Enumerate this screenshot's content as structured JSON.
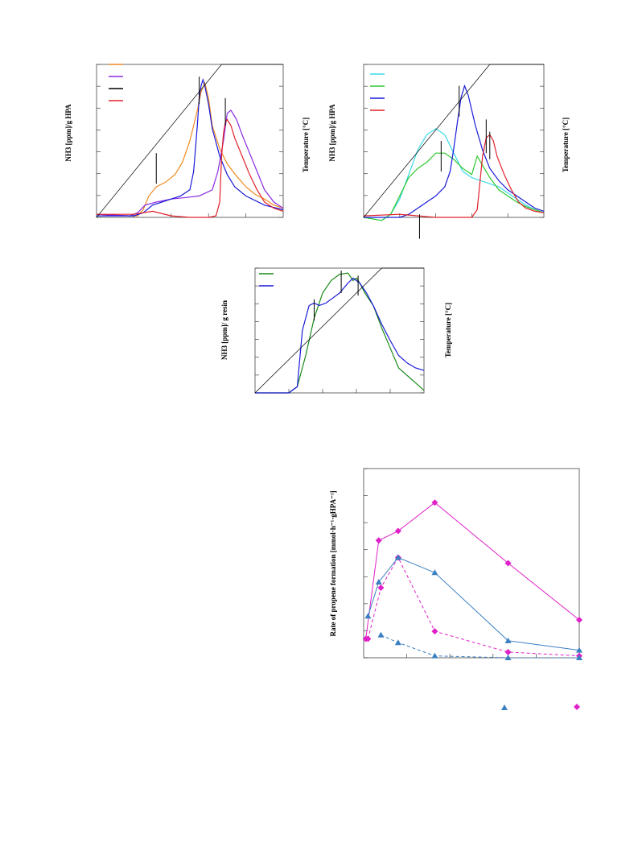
{
  "chart_data": [
    {
      "type": "line",
      "panel": "top-left",
      "ylabel_left": "NH3 [ppm]/g HPA",
      "ylabel_right": "Temperature [°C]",
      "legend_placement": "top-left",
      "legend_colors": [
        "#f08a20",
        "#8a2be2",
        "#000000",
        "#e0202a"
      ],
      "x_range": [
        0,
        100
      ],
      "y_range": [
        0,
        100
      ],
      "series": [
        {
          "color": "#f08a20",
          "x": [
            0,
            18,
            22,
            25,
            28,
            32,
            37,
            42,
            46,
            50,
            54,
            56,
            58,
            60,
            62,
            66,
            70,
            75,
            80,
            85,
            90,
            95,
            100
          ],
          "y": [
            2,
            1,
            1,
            5,
            14,
            20,
            23,
            28,
            36,
            50,
            70,
            82,
            88,
            78,
            60,
            45,
            35,
            27,
            20,
            15,
            12,
            8,
            6
          ]
        },
        {
          "color": "#8a2be2",
          "x": [
            0,
            18,
            22,
            26,
            32,
            40,
            48,
            55,
            62,
            65,
            68,
            70,
            72,
            75,
            78,
            82,
            86,
            90,
            95,
            100
          ],
          "y": [
            2,
            1,
            3,
            8,
            10,
            12,
            13,
            14,
            18,
            30,
            50,
            68,
            70,
            64,
            54,
            42,
            30,
            18,
            10,
            6
          ]
        },
        {
          "color": "#1a1ad8",
          "x": [
            0,
            20,
            25,
            30,
            35,
            40,
            45,
            50,
            52,
            54,
            55,
            56,
            57,
            58,
            60,
            62,
            66,
            70,
            74,
            80,
            90,
            100
          ],
          "y": [
            1,
            1,
            3,
            8,
            10,
            12,
            14,
            18,
            30,
            60,
            78,
            86,
            90,
            86,
            74,
            58,
            40,
            28,
            20,
            14,
            8,
            5
          ]
        },
        {
          "color": "#e0202a",
          "x": [
            0,
            20,
            30,
            40,
            50,
            60,
            64,
            66,
            67,
            68,
            69,
            70,
            72,
            74,
            78,
            82,
            86,
            90,
            95,
            100
          ],
          "y": [
            2,
            2,
            4,
            1,
            0,
            0,
            1,
            10,
            40,
            55,
            62,
            64,
            60,
            52,
            40,
            28,
            18,
            10,
            6,
            4
          ]
        },
        {
          "color": "#000000",
          "x": [
            0,
            67,
            70,
            100
          ],
          "y": [
            0,
            100,
            100,
            100
          ]
        }
      ]
    },
    {
      "type": "line",
      "panel": "top-right",
      "ylabel_left": "NH3 [ppm]/g HPA",
      "ylabel_right": "Temperature [°C]",
      "legend_placement": "top-left",
      "legend_colors": [
        "#39d9e8",
        "#2ec82e",
        "#1a1ad8",
        "#e0202a"
      ],
      "x_range": [
        0,
        100
      ],
      "y_range": [
        0,
        100
      ],
      "series": [
        {
          "color": "#39d9e8",
          "x": [
            0,
            10,
            15,
            20,
            25,
            30,
            35,
            40,
            45,
            50,
            55,
            60,
            65,
            70,
            75,
            80,
            85,
            90,
            95,
            100
          ],
          "y": [
            0,
            -2,
            2,
            12,
            28,
            44,
            54,
            58,
            54,
            42,
            30,
            26,
            24,
            22,
            20,
            16,
            12,
            8,
            5,
            3
          ]
        },
        {
          "color": "#2ec82e",
          "x": [
            0,
            10,
            15,
            20,
            25,
            30,
            35,
            40,
            45,
            50,
            55,
            60,
            63,
            66,
            70,
            75,
            80,
            85,
            90,
            95,
            100
          ],
          "y": [
            0,
            -2,
            2,
            14,
            26,
            32,
            36,
            42,
            42,
            38,
            32,
            28,
            40,
            34,
            26,
            18,
            14,
            10,
            7,
            5,
            3
          ]
        },
        {
          "color": "#1a1ad8",
          "x": [
            0,
            20,
            25,
            30,
            35,
            40,
            45,
            48,
            50,
            52,
            54,
            56,
            58,
            62,
            66,
            70,
            75,
            80,
            85,
            90,
            95,
            100
          ],
          "y": [
            0,
            0,
            2,
            6,
            10,
            14,
            20,
            30,
            45,
            62,
            78,
            86,
            80,
            60,
            44,
            32,
            24,
            18,
            14,
            10,
            6,
            4
          ]
        },
        {
          "color": "#e0202a",
          "x": [
            0,
            20,
            30,
            40,
            50,
            60,
            63,
            66,
            68,
            70,
            72,
            74,
            78,
            82,
            86,
            90,
            95,
            100
          ],
          "y": [
            1,
            2,
            1,
            0,
            0,
            0,
            5,
            40,
            52,
            54,
            50,
            40,
            28,
            18,
            10,
            6,
            4,
            3
          ]
        },
        {
          "color": "#000000",
          "x": [
            0,
            70,
            100
          ],
          "y": [
            0,
            100,
            100
          ]
        }
      ]
    },
    {
      "type": "line",
      "panel": "middle",
      "ylabel_left": "NH3 [ppm]/ g resin",
      "ylabel_right": "Temperature [°C]",
      "legend_placement": "top-left",
      "legend_colors": [
        "#1a8a1a",
        "#1a1ad8"
      ],
      "x_range": [
        0,
        100
      ],
      "y_range": [
        0,
        100
      ],
      "series": [
        {
          "color": "#1a8a1a",
          "x": [
            0,
            20,
            25,
            30,
            35,
            40,
            45,
            50,
            55,
            58,
            60,
            62,
            65,
            70,
            75,
            80,
            85,
            90,
            95,
            100
          ],
          "y": [
            0,
            0,
            5,
            30,
            60,
            80,
            90,
            95,
            96,
            90,
            92,
            88,
            80,
            70,
            52,
            36,
            20,
            14,
            8,
            2
          ]
        },
        {
          "color": "#1a1ad8",
          "x": [
            0,
            20,
            25,
            28,
            32,
            35,
            38,
            42,
            46,
            50,
            55,
            58,
            62,
            66,
            70,
            75,
            80,
            85,
            90,
            95,
            100
          ],
          "y": [
            0,
            0,
            5,
            50,
            70,
            72,
            70,
            72,
            76,
            80,
            88,
            92,
            88,
            80,
            70,
            55,
            42,
            30,
            24,
            20,
            18
          ]
        },
        {
          "color": "#000000",
          "x": [
            0,
            75,
            78,
            100
          ],
          "y": [
            0,
            100,
            100,
            100
          ]
        }
      ]
    },
    {
      "type": "scatter",
      "panel": "bottom",
      "ylabel": "Rate of propene formation [mmol·h⁻¹·gHPA⁻¹]",
      "legend_placement": "bottom",
      "x_range": [
        0,
        100
      ],
      "y_range": [
        0,
        100
      ],
      "series": [
        {
          "color": "#e020c8",
          "marker": "diamond",
          "line": "solid",
          "x": [
            1,
            7,
            16,
            33,
            67,
            100
          ],
          "y": [
            10,
            62,
            67,
            82,
            50,
            20
          ]
        },
        {
          "color": "#e020c8",
          "marker": "diamond",
          "line": "dashed",
          "x": [
            2,
            8,
            16,
            33,
            67,
            100
          ],
          "y": [
            10,
            37,
            53,
            14,
            3,
            1
          ]
        },
        {
          "color": "#3a7fc0",
          "marker": "triangle",
          "line": "solid",
          "x": [
            2,
            7,
            16,
            33,
            67,
            100
          ],
          "y": [
            22,
            40,
            53,
            45,
            9,
            4
          ]
        },
        {
          "color": "#3a7fc0",
          "marker": "triangle",
          "line": "dashed",
          "x": [
            8,
            16,
            33,
            67,
            100
          ],
          "y": [
            12,
            8,
            1,
            0,
            0
          ]
        }
      ]
    }
  ]
}
